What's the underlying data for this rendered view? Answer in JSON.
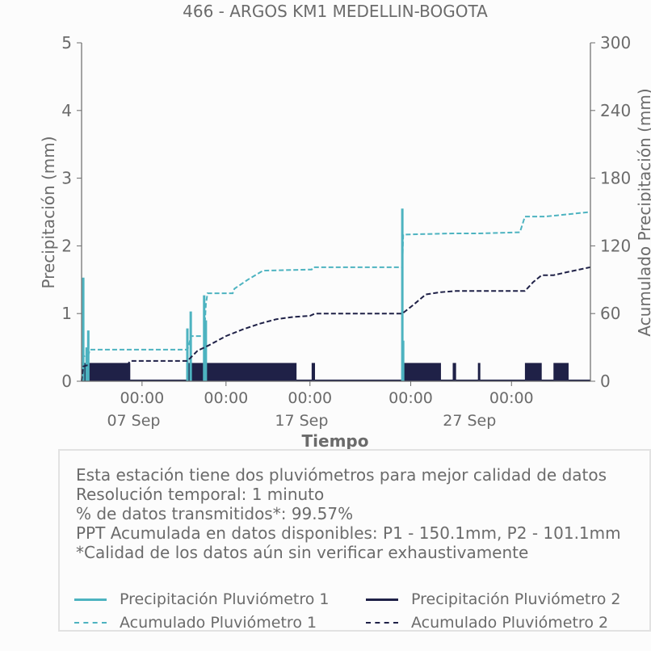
{
  "title": "466 - ARGOS KM1 MEDELLIN-BOGOTA",
  "colors": {
    "p1": "#4db3c0",
    "p2": "#1f2147",
    "axis": "#6b6b6b",
    "text": "#6b6b6b"
  },
  "info": {
    "lines": [
      "Esta estación tiene dos pluviómetros para mejor calidad de datos",
      "Resolución temporal: 1 minuto",
      "% de datos transmitidos*: 99.57%",
      "PPT Acumulada en datos disponibles: P1 - 150.1mm, P2 - 101.1mm",
      "*Calidad de los datos aún sin verificar exhaustivamente"
    ]
  },
  "legend": [
    {
      "label": "Precipitación Pluviómetro 1",
      "color": "#4db3c0",
      "style": "solid"
    },
    {
      "label": "Precipitación Pluviómetro 2",
      "color": "#1f2147",
      "style": "solid"
    },
    {
      "label": "Acumulado Pluviómetro 1",
      "color": "#4db3c0",
      "style": "dashed"
    },
    {
      "label": "Acumulado Pluviómetro 2",
      "color": "#1f2147",
      "style": "dashed"
    }
  ],
  "chart_data": {
    "type": "line",
    "title": "466 - ARGOS KM1 MEDELLIN-BOGOTA",
    "xlabel": "Tiempo",
    "ylabel": "Precipitación (mm)",
    "y2label": "Acumulado Precipitación (mm)",
    "x_unit": "days since 01 Sep 00:00",
    "xlim": [
      2.9,
      33.2
    ],
    "ylim": [
      0,
      5
    ],
    "y2lim": [
      0,
      300
    ],
    "yticks": [
      0,
      1,
      2,
      3,
      4,
      5
    ],
    "y2ticks": [
      0,
      60,
      120,
      180,
      240,
      300
    ],
    "xticks_time": [
      {
        "x": 6.5,
        "label": "00:00"
      },
      {
        "x": 11.5,
        "label": "00:00"
      },
      {
        "x": 16.5,
        "label": "00:00"
      },
      {
        "x": 22.5,
        "label": "00:00"
      },
      {
        "x": 28.5,
        "label": "00:00"
      }
    ],
    "xticks_date": [
      {
        "x": 6.0,
        "label": "07 Sep"
      },
      {
        "x": 16.0,
        "label": "17 Sep"
      },
      {
        "x": 26.0,
        "label": "27 Sep"
      }
    ],
    "grid": false,
    "series": [
      {
        "name": "Precipitación Pluviómetro 1",
        "axis": "left",
        "style": "spikes",
        "spikes": [
          [
            3.0,
            1.53
          ],
          [
            3.2,
            0.5
          ],
          [
            3.3,
            0.75
          ],
          [
            9.2,
            0.78
          ],
          [
            9.4,
            1.03
          ],
          [
            10.2,
            1.27
          ],
          [
            10.3,
            0.9
          ],
          [
            22.0,
            2.55
          ],
          [
            22.05,
            0.6
          ]
        ]
      },
      {
        "name": "Precipitación Pluviómetro 2",
        "axis": "left",
        "style": "blocks",
        "blocks": [
          [
            3.0,
            5.8
          ],
          [
            9.2,
            15.7
          ],
          [
            16.6,
            16.8
          ],
          [
            22.0,
            24.3
          ],
          [
            25.0,
            25.2
          ],
          [
            26.5,
            26.6
          ],
          [
            29.3,
            30.3
          ],
          [
            31.0,
            31.9
          ]
        ],
        "height": 0.27
      },
      {
        "name": "Acumulado Pluviómetro 1",
        "axis": "right",
        "style": "dashed",
        "x": [
          2.9,
          3.0,
          3.3,
          3.4,
          9.2,
          9.3,
          9.4,
          10.2,
          10.3,
          10.4,
          11.9,
          12.0,
          12.8,
          13.7,
          16.6,
          16.7,
          22.0,
          22.05,
          25.0,
          26.5,
          29.0,
          29.3,
          30.5,
          31.2,
          33.2
        ],
        "y": [
          0,
          22,
          23,
          28,
          28,
          32,
          40,
          40,
          68,
          78,
          78,
          82,
          90,
          98,
          99,
          101,
          101,
          130,
          131,
          131,
          132,
          146,
          146,
          147,
          150.1
        ]
      },
      {
        "name": "Acumulado Pluviómetro 2",
        "axis": "right",
        "style": "dashed",
        "x": [
          2.9,
          3.0,
          3.2,
          5.6,
          5.8,
          9.2,
          9.8,
          10.5,
          11.5,
          12.5,
          13.5,
          14.5,
          15.5,
          16.5,
          16.8,
          22.0,
          22.6,
          23.4,
          24.3,
          25.2,
          26.6,
          29.3,
          29.8,
          30.3,
          31.0,
          31.9,
          33.2
        ],
        "y": [
          0,
          13,
          14,
          14,
          18,
          18,
          27,
          32,
          40,
          46,
          51,
          55,
          57,
          58,
          60,
          60,
          67,
          77,
          79,
          80,
          80,
          80,
          88,
          94,
          94,
          97,
          101.1
        ]
      }
    ]
  }
}
